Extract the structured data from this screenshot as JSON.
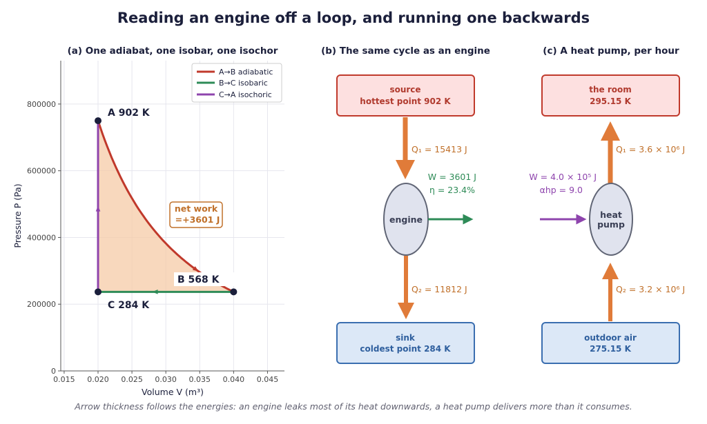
{
  "title": "Reading an engine off a loop, and running one backwards",
  "caption": "Arrow thickness follows the energies: an engine leaks most of its heat downwards, a heat pump delivers more than it consumes.",
  "panel_a": {
    "title": "(a) One adiabat, one isobar, one isochor",
    "legend": [
      "A→B adiabatic",
      "B→C isobaric",
      "C→A isochoric"
    ],
    "points": {
      "A": "A  902 K",
      "B": "B  568 K",
      "C": "C  284 K"
    },
    "net_work_title": "net work",
    "net_work_value": "=+3601 J",
    "colors": {
      "adiabatic": "#c0392b",
      "isobaric": "#2e8b57",
      "isochoric": "#8e44ad",
      "fill": "#f5cba7"
    }
  },
  "chart_data": {
    "type": "line",
    "xlabel": "Volume V  (m³)",
    "ylabel": "Pressure P  (Pa)",
    "xlim": [
      0.0145,
      0.0475
    ],
    "ylim": [
      0,
      930000
    ],
    "x_ticks": [
      "0.015",
      "0.020",
      "0.025",
      "0.030",
      "0.035",
      "0.040",
      "0.045"
    ],
    "y_ticks": [
      "0",
      "200000",
      "400000",
      "600000",
      "800000"
    ],
    "grid": true,
    "legend_position": "top-right",
    "series": [
      {
        "name": "A→B adiabatic",
        "process": "adiabatic",
        "gamma": 1.4,
        "from": [
          0.02,
          750000
        ],
        "to": [
          0.04,
          237000
        ]
      },
      {
        "name": "B→C isobaric",
        "process": "isobaric",
        "from": [
          0.04,
          237000
        ],
        "to": [
          0.02,
          237000
        ]
      },
      {
        "name": "C→A isochoric",
        "process": "isochoric",
        "from": [
          0.02,
          237000
        ],
        "to": [
          0.02,
          750000
        ]
      }
    ],
    "state_points": [
      {
        "name": "A",
        "x": 0.02,
        "y": 750000
      },
      {
        "name": "B",
        "x": 0.04,
        "y": 237000
      },
      {
        "name": "C",
        "x": 0.02,
        "y": 237000
      }
    ]
  },
  "panel_b": {
    "title": "(b) The same cycle as an engine",
    "source_line1": "source",
    "source_line2": "hottest point 902 K",
    "sink_line1": "sink",
    "sink_line2": "coldest point 284 K",
    "engine_label": "engine",
    "q1": "Q₁ = 15413 J",
    "q2": "Q₂ = 11812 J",
    "w": "W = 3601 J",
    "eta": "η = 23.4%"
  },
  "panel_c": {
    "title": "(c) A heat pump, per hour",
    "room_line1": "the room",
    "room_line2": "295.15 K",
    "outdoor_line1": "outdoor air",
    "outdoor_line2": "275.15 K",
    "pump_line1": "heat",
    "pump_line2": "pump",
    "q1": "Q₁ = 3.6 × 10⁶ J",
    "q2": "Q₂ = 3.2 × 10⁶ J",
    "w": "W = 4.0 × 10⁵ J",
    "alpha": "αhp = 9.0"
  }
}
